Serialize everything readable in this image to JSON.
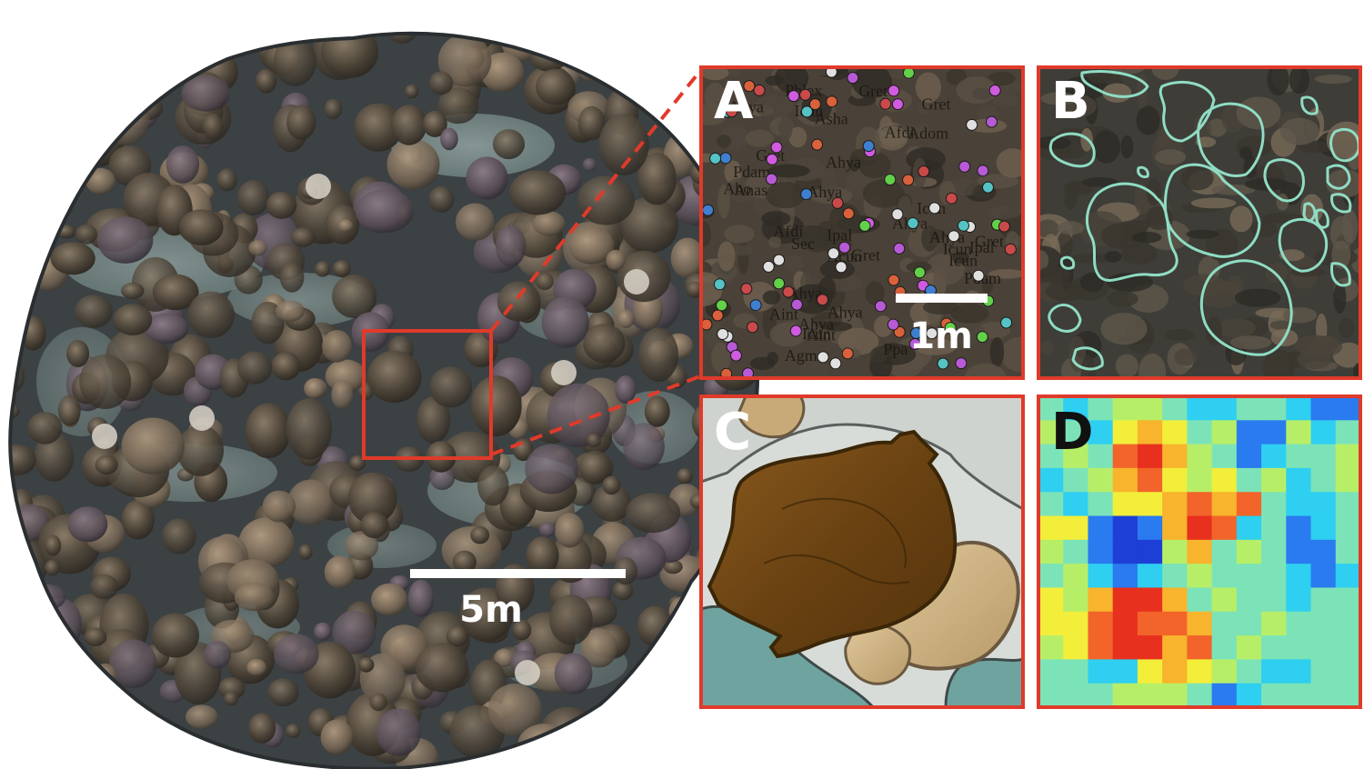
{
  "orthomosaic": {
    "scale_bar_label": "5m"
  },
  "panels": [
    {
      "id": "A",
      "letter": "A",
      "scale_bar_label": "1m",
      "content": "point annotations"
    },
    {
      "id": "B",
      "letter": "B",
      "content": "coral colony outlines"
    },
    {
      "id": "C",
      "letter": "C",
      "content": "3D rendered coral colony"
    },
    {
      "id": "D",
      "letter": "D",
      "content": "heatmap grid"
    }
  ],
  "point_labels": [
    "Icun",
    "Gret",
    "Icun",
    "Agmo",
    "Acun",
    "Gret",
    "Asha",
    "Afdi",
    "Pdam",
    "Ahya",
    "Ahya",
    "Ahya",
    "Gret",
    "Anas",
    "Icun",
    "Ahya",
    "Aint",
    "Pdam",
    "Ipal",
    "Phlex",
    "Icun",
    "Gret",
    "Adom",
    "Ahya",
    "Ipal",
    "Icun",
    "Ahya",
    "Ahya",
    "Ppa",
    "Afdi",
    "Ahya",
    "Gret",
    "Abo",
    "Aint",
    "Sec"
  ],
  "colors": {
    "frame": "#e03a2a",
    "outline": "#8fdcc4",
    "point_colors": [
      "#b85ad6",
      "#d05be0",
      "#63d04a",
      "#d9613b",
      "#3f7fd0",
      "#55c2c4",
      "#c94a4a",
      "#e0e0e0"
    ],
    "heatmap_palette": [
      "#1d3fd6",
      "#2a7af0",
      "#2ecff0",
      "#7ce3b8",
      "#b7ee68",
      "#f2ee3a",
      "#f7b42c",
      "#f2642a",
      "#e8301f"
    ]
  },
  "heatmap": {
    "rows": [
      [
        3,
        2,
        3,
        4,
        4,
        3,
        2,
        2,
        3,
        3,
        2,
        1,
        1
      ],
      [
        4,
        3,
        2,
        5,
        6,
        5,
        3,
        4,
        1,
        1,
        4,
        2,
        3
      ],
      [
        3,
        4,
        3,
        7,
        8,
        6,
        4,
        3,
        1,
        2,
        3,
        3,
        4
      ],
      [
        2,
        3,
        4,
        6,
        7,
        5,
        4,
        5,
        3,
        4,
        2,
        3,
        4
      ],
      [
        3,
        2,
        3,
        5,
        5,
        6,
        7,
        6,
        7,
        3,
        2,
        2,
        3
      ],
      [
        5,
        5,
        1,
        0,
        1,
        6,
        8,
        7,
        2,
        3,
        1,
        2,
        3
      ],
      [
        4,
        3,
        1,
        0,
        0,
        4,
        6,
        3,
        4,
        3,
        1,
        1,
        3
      ],
      [
        3,
        4,
        2,
        1,
        2,
        3,
        4,
        3,
        3,
        3,
        2,
        1,
        2
      ],
      [
        5,
        4,
        6,
        8,
        8,
        6,
        3,
        4,
        3,
        3,
        2,
        3,
        3
      ],
      [
        5,
        5,
        7,
        8,
        7,
        7,
        6,
        3,
        3,
        4,
        3,
        3,
        3
      ],
      [
        4,
        5,
        7,
        8,
        8,
        6,
        7,
        3,
        4,
        3,
        3,
        3,
        3
      ],
      [
        3,
        3,
        2,
        2,
        5,
        6,
        5,
        4,
        3,
        2,
        2,
        3,
        3
      ],
      [
        3,
        3,
        3,
        4,
        4,
        4,
        3,
        1,
        2,
        3,
        3,
        3,
        3
      ]
    ]
  }
}
